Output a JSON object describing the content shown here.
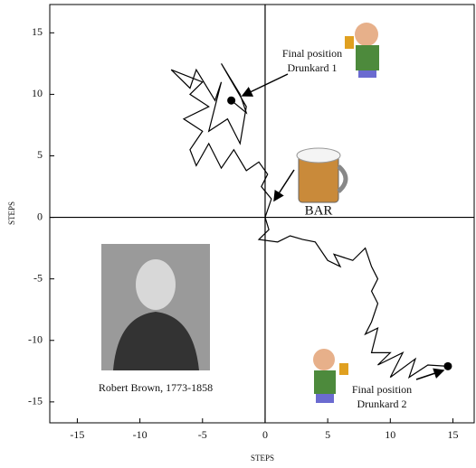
{
  "chart_data": {
    "type": "line",
    "xlabel": "STEPS",
    "ylabel": "STEPS",
    "xlim": [
      -17.2,
      16.7
    ],
    "ylim": [
      -16.7,
      17.3
    ],
    "xticks": [
      -15,
      -10,
      -5,
      0,
      5,
      10,
      15
    ],
    "yticks": [
      -15,
      -10,
      -5,
      0,
      5,
      10,
      15
    ],
    "annotations": [
      "Final position",
      "Drunkard 1",
      "BAR",
      "Robert Brown, 1773-1858",
      "Final position",
      "Drunkard 2"
    ],
    "series": [
      {
        "color": "#000000",
        "x": [
          0,
          0.5,
          -0.3,
          0.2,
          -0.5,
          -1.5,
          -2.5,
          -3.5,
          -4.5,
          -5.5,
          -6,
          -5,
          -6.5,
          -4.5,
          -6,
          -5,
          -7.5,
          -6,
          -5.5,
          -4,
          -3.5,
          -4.5,
          -3,
          -2,
          -1.5,
          -3.5,
          -2,
          -1.5,
          -2.7
        ],
        "values": [
          0,
          1.5,
          2.5,
          3.5,
          4.5,
          3.8,
          5.5,
          4,
          6,
          4.2,
          5.5,
          7,
          8,
          9,
          10,
          11,
          12,
          10.5,
          12,
          9.5,
          11,
          7,
          8,
          6,
          9,
          12.5,
          10,
          8.5,
          9.5
        ]
      },
      {
        "color": "#000000",
        "x": [
          0,
          0.3,
          -0.5,
          1,
          2,
          3,
          4,
          5,
          6,
          5.5,
          7,
          8,
          8.5,
          9,
          8.5,
          9,
          8.5,
          8,
          9,
          8.5,
          10,
          9,
          11,
          10,
          12,
          11.5,
          13,
          14.6
        ],
        "values": [
          0,
          -1,
          -1.8,
          -2,
          -1.5,
          -1.8,
          -2,
          -3.5,
          -4,
          -3,
          -3.5,
          -2.5,
          -4,
          -5,
          -6,
          -7,
          -8.5,
          -9.5,
          -9,
          -11,
          -11,
          -12,
          -11,
          -13,
          -11.5,
          -13,
          -12,
          -12.1
        ]
      }
    ]
  }
}
